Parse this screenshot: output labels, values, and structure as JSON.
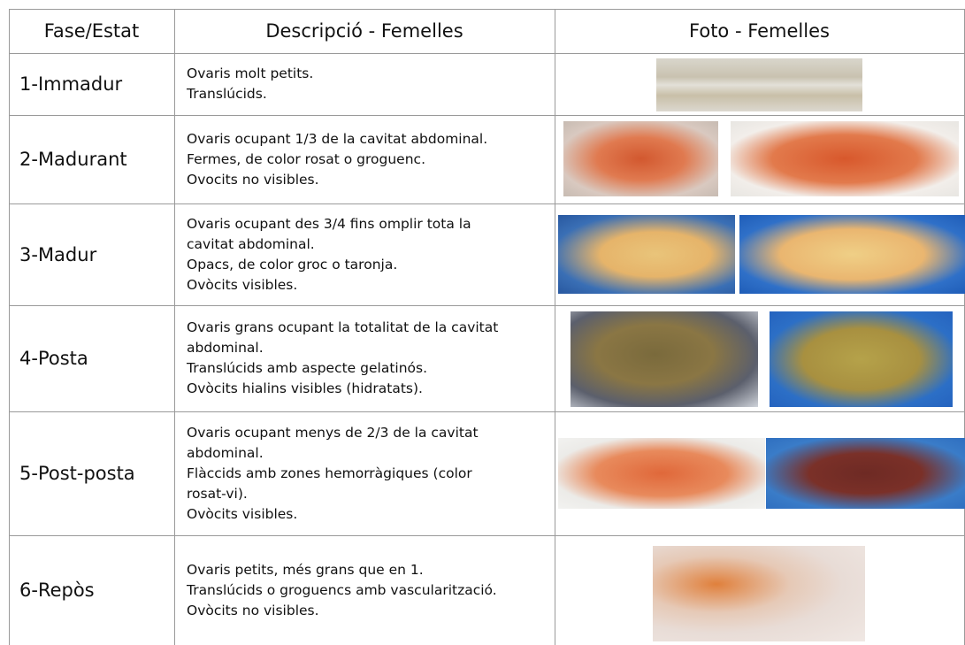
{
  "table": {
    "header": [
      "Fase/Estat",
      "Descripció - Femelles",
      "Foto - Femelles"
    ],
    "rows": [
      {
        "phase": "1-Immadur",
        "lines": [
          "Ovaris molt petits.",
          "Translúcids."
        ]
      },
      {
        "phase": "2-Madurant",
        "lines": [
          "Ovaris ocupant 1/3 de la cavitat abdominal.",
          "Fermes, de color rosat o groguenc.",
          "Ovocits no visibles."
        ]
      },
      {
        "phase": "3-Madur",
        "lines": [
          "Ovaris ocupant des 3/4 fins omplir tota la",
          "cavitat abdominal.",
          "Opacs, de color groc o taronja.",
          "Ovòcits visibles."
        ]
      },
      {
        "phase": "4-Posta",
        "lines": [
          "Ovaris grans ocupant la totalitat de la cavitat",
          "abdominal.",
          "Translúcids amb aspecte gelatinós.",
          "Ovòcits hialins visibles (hidratats)."
        ]
      },
      {
        "phase": "5-Post-posta",
        "lines": [
          "Ovaris ocupant menys de 2/3 de la cavitat",
          "abdominal.",
          "Flàccids amb zones hemorràgiques (color",
          "rosat-vi).",
          "Ovòcits visibles."
        ]
      },
      {
        "phase": "6-Repòs",
        "lines": [
          "Ovaris petits, més grans que en 1.",
          "Translúcids o groguencs amb vascularització.",
          "Ovòcits no visibles."
        ]
      }
    ]
  }
}
